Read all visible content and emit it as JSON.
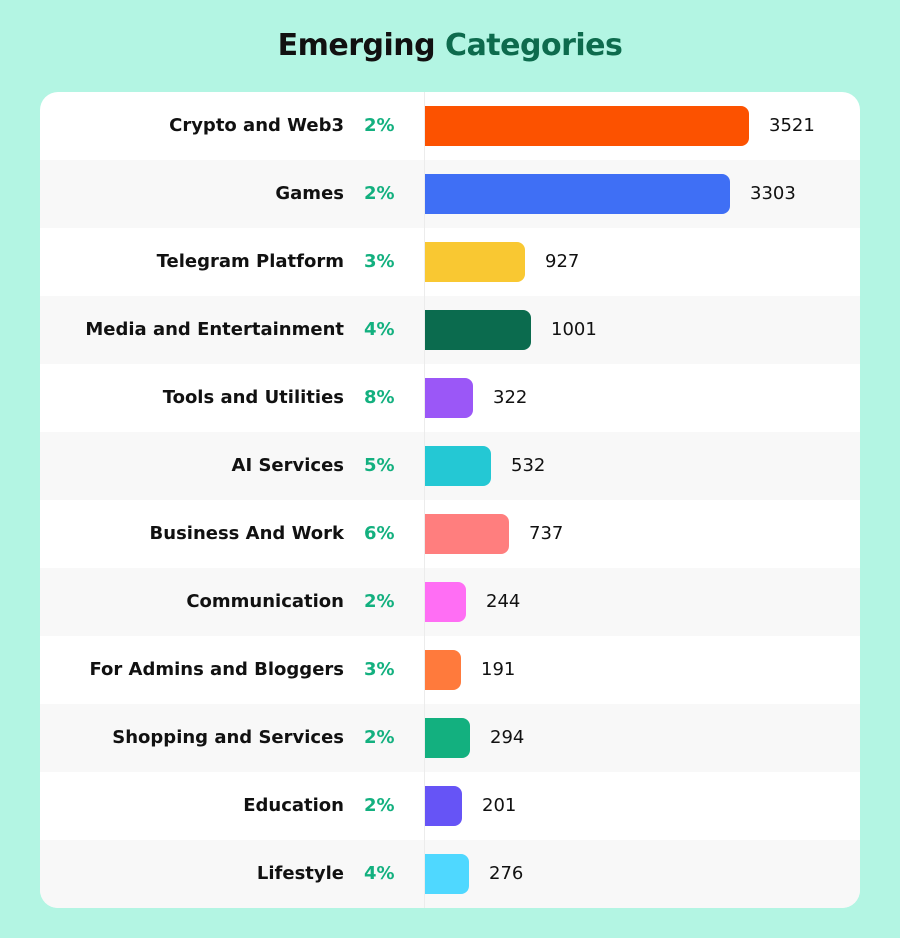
{
  "title": {
    "part1": "Emerging",
    "part2": "Categories"
  },
  "colors": {
    "title_accent": "#0d6b4d",
    "percent": "#13b07f",
    "background": "#b3f5e3"
  },
  "chart_data": {
    "type": "bar",
    "orientation": "horizontal",
    "title": "Emerging Categories",
    "categories": [
      "Crypto and Web3",
      "Games",
      "Telegram Platform",
      "Media and Entertainment",
      "Tools and Utilities",
      "AI Services",
      "Business And Work",
      "Communication",
      "For Admins and Bloggers",
      "Shopping and Services",
      "Education",
      "Lifestyle"
    ],
    "values": [
      3521,
      3303,
      927,
      1001,
      322,
      532,
      737,
      244,
      191,
      294,
      201,
      276
    ],
    "percents": [
      "2%",
      "2%",
      "3%",
      "4%",
      "8%",
      "5%",
      "6%",
      "2%",
      "3%",
      "2%",
      "2%",
      "4%"
    ],
    "bar_colors": [
      "#fc5200",
      "#3f6ff5",
      "#f9c832",
      "#0b6b4e",
      "#9b57f7",
      "#24c8d4",
      "#ff7e7e",
      "#ff6ef4",
      "#ff7a3c",
      "#13b07f",
      "#6654f6",
      "#4fd8ff"
    ],
    "grid": false
  }
}
